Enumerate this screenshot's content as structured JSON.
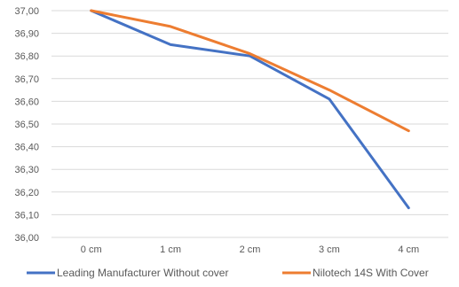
{
  "chart_data": {
    "type": "line",
    "title": "",
    "xlabel": "",
    "ylabel": "",
    "categories": [
      "0 cm",
      "1 cm",
      "2 cm",
      "3 cm",
      "4 cm"
    ],
    "ylim": [
      36.0,
      37.0
    ],
    "yticks": [
      "36,00",
      "36,10",
      "36,20",
      "36,30",
      "36,40",
      "36,50",
      "36,60",
      "36,70",
      "36,80",
      "36,90",
      "37,00"
    ],
    "grid": true,
    "legend_position": "bottom",
    "series": [
      {
        "name": "Leading Manufacturer Without cover",
        "color": "#4472C4",
        "values": [
          37.0,
          36.85,
          36.8,
          36.61,
          36.13
        ]
      },
      {
        "name": "Nilotech 14S With Cover",
        "color": "#ED7D31",
        "values": [
          37.0,
          36.93,
          36.81,
          36.65,
          36.47
        ]
      }
    ]
  }
}
